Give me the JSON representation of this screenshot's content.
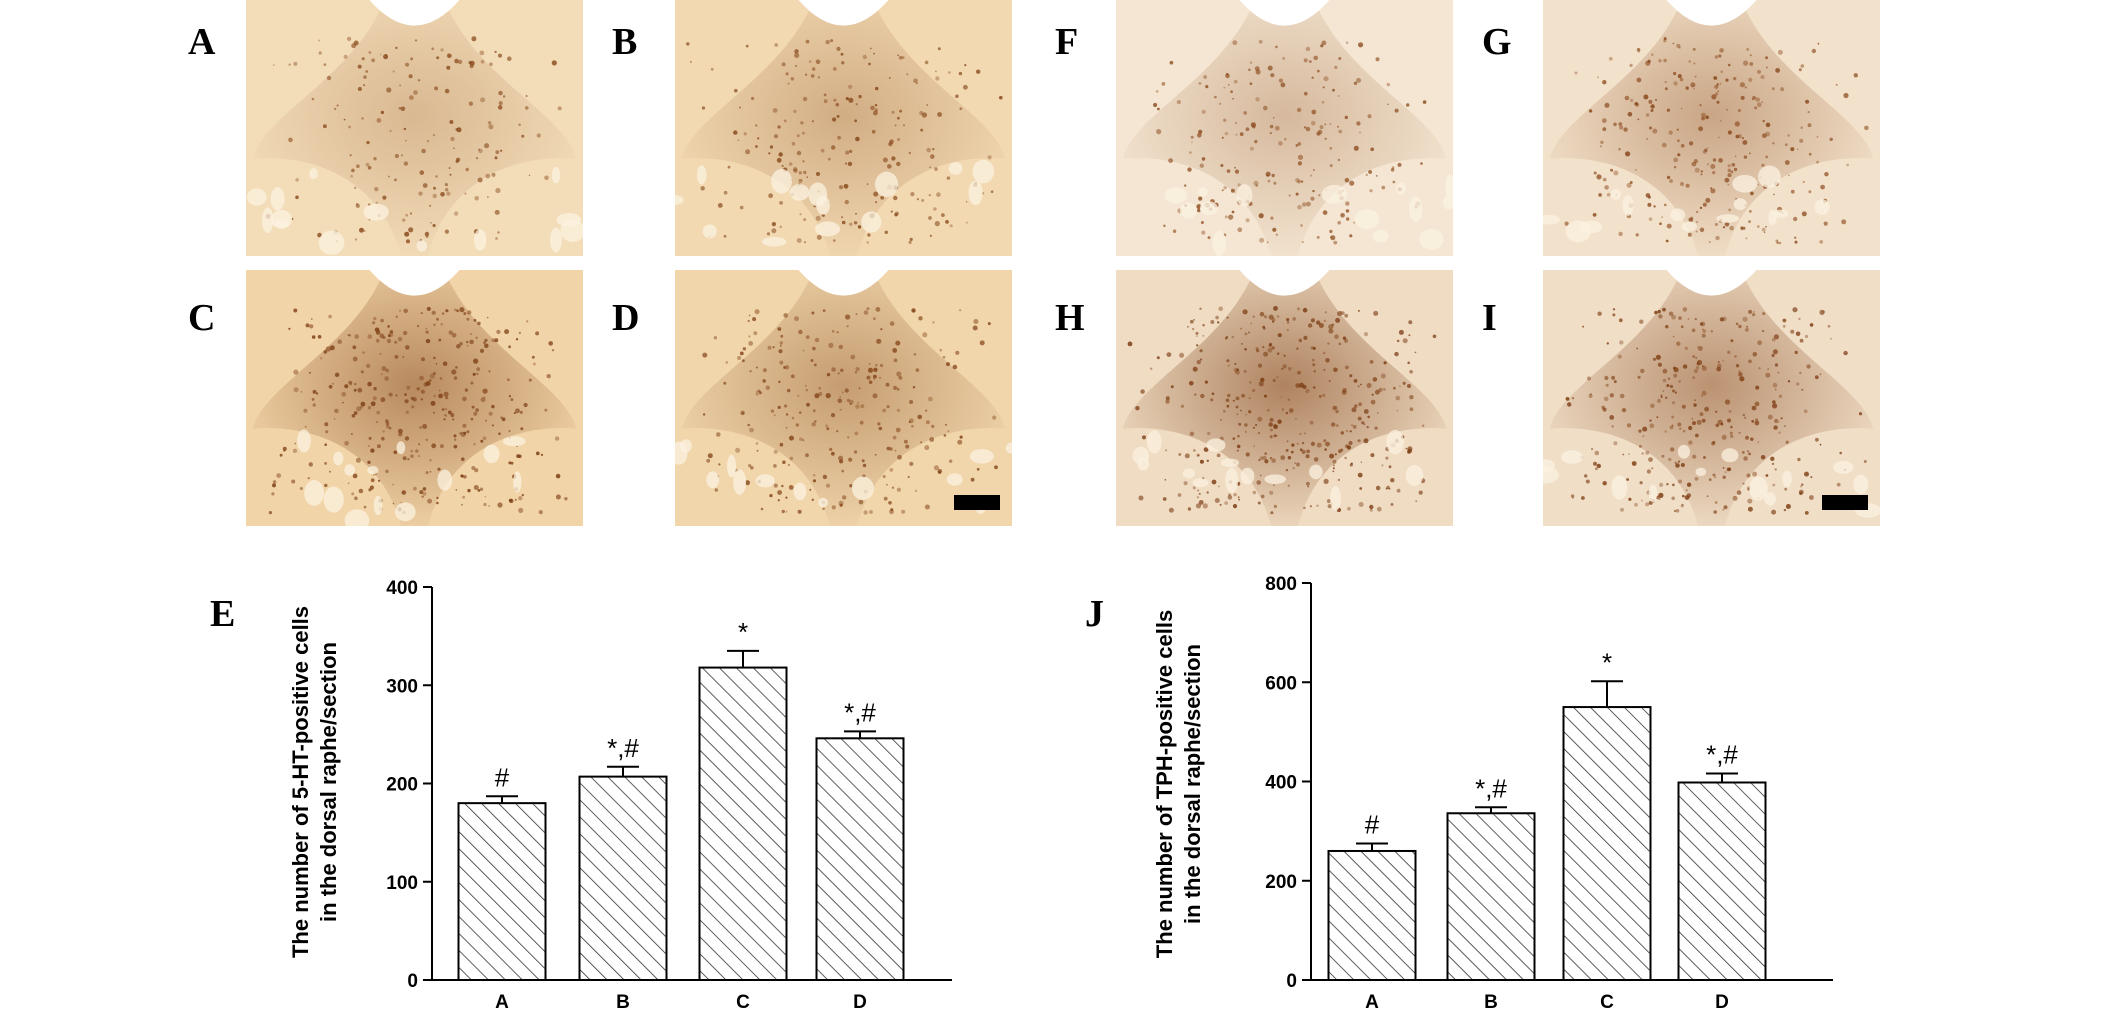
{
  "panel_labels": {
    "A": "A",
    "B": "B",
    "C": "C",
    "D": "D",
    "F": "F",
    "G": "G",
    "H": "H",
    "I": "I",
    "E": "E",
    "J": "J"
  },
  "micrographs": {
    "A": {
      "tone": "#f3ddb9",
      "density": 0.45,
      "stain": "#8a4a1c"
    },
    "B": {
      "tone": "#f2d9b2",
      "density": 0.55,
      "stain": "#864619"
    },
    "C": {
      "tone": "#f1d4a8",
      "density": 0.9,
      "stain": "#7e3f14"
    },
    "D": {
      "tone": "#f1d6ac",
      "density": 0.7,
      "stain": "#824317"
    },
    "F": {
      "tone": "#f4e6d2",
      "density": 0.55,
      "stain": "#8f4f22"
    },
    "G": {
      "tone": "#f3e2cb",
      "density": 0.7,
      "stain": "#884619"
    },
    "H": {
      "tone": "#efdcc3",
      "density": 1.0,
      "stain": "#7a3a10"
    },
    "I": {
      "tone": "#f0dec7",
      "density": 0.85,
      "stain": "#7e3d12"
    }
  },
  "chart_data": [
    {
      "type": "bar",
      "panel": "E",
      "categories": [
        "A",
        "B",
        "C",
        "D"
      ],
      "values": [
        180,
        207,
        318,
        246
      ],
      "errors": [
        7,
        10,
        17,
        7
      ],
      "significance": [
        "#",
        "*,#",
        "*",
        "*,#"
      ],
      "ylabel_lines": [
        "The number of 5-HT-positive cells",
        "in the dorsal raphe/section"
      ],
      "ylim": [
        0,
        400
      ],
      "yticks": [
        0,
        100,
        200,
        300,
        400
      ],
      "bar_fill": "hatched"
    },
    {
      "type": "bar",
      "panel": "J",
      "categories": [
        "A",
        "B",
        "C",
        "D"
      ],
      "values": [
        260,
        336,
        550,
        398
      ],
      "errors": [
        15,
        12,
        52,
        18
      ],
      "significance": [
        "#",
        "*,#",
        "*",
        "*,#"
      ],
      "ylabel_lines": [
        "The number of TPH-positive cells",
        "in the dorsal raphe/section"
      ],
      "ylim": [
        0,
        800
      ],
      "yticks": [
        0,
        200,
        400,
        600,
        800
      ],
      "bar_fill": "hatched"
    }
  ]
}
